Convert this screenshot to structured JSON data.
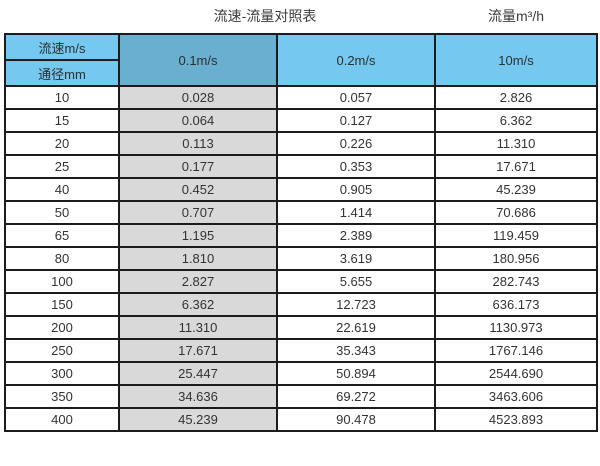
{
  "titles": {
    "main": "流速-流量对照表",
    "unit": "流量m³/h"
  },
  "table": {
    "corner_top": "流速m/s",
    "corner_bottom": "通径mm",
    "velocity_headers": [
      "0.1m/s",
      "0.2m/s",
      "10m/s"
    ],
    "rows": [
      {
        "diameter": "10",
        "values": [
          "0.028",
          "0.057",
          "2.826"
        ]
      },
      {
        "diameter": "15",
        "values": [
          "0.064",
          "0.127",
          "6.362"
        ]
      },
      {
        "diameter": "20",
        "values": [
          "0.113",
          "0.226",
          "11.310"
        ]
      },
      {
        "diameter": "25",
        "values": [
          "0.177",
          "0.353",
          "17.671"
        ]
      },
      {
        "diameter": "40",
        "values": [
          "0.452",
          "0.905",
          "45.239"
        ]
      },
      {
        "diameter": "50",
        "values": [
          "0.707",
          "1.414",
          "70.686"
        ]
      },
      {
        "diameter": "65",
        "values": [
          "1.195",
          "2.389",
          "119.459"
        ]
      },
      {
        "diameter": "80",
        "values": [
          "1.810",
          "3.619",
          "180.956"
        ]
      },
      {
        "diameter": "100",
        "values": [
          "2.827",
          "5.655",
          "282.743"
        ]
      },
      {
        "diameter": "150",
        "values": [
          "6.362",
          "12.723",
          "636.173"
        ]
      },
      {
        "diameter": "200",
        "values": [
          "11.310",
          "22.619",
          "1130.973"
        ]
      },
      {
        "diameter": "250",
        "values": [
          "17.671",
          "35.343",
          "1767.146"
        ]
      },
      {
        "diameter": "300",
        "values": [
          "25.447",
          "50.894",
          "2544.690"
        ]
      },
      {
        "diameter": "350",
        "values": [
          "34.636",
          "69.272",
          "3463.606"
        ]
      },
      {
        "diameter": "400",
        "values": [
          "45.239",
          "90.478",
          "4523.893"
        ]
      }
    ]
  },
  "colors": {
    "header_blue": "#75c9f0",
    "header_blue_dark": "#68afd0",
    "column_grey": "#d9d9d9",
    "border": "#1c1c1c"
  }
}
